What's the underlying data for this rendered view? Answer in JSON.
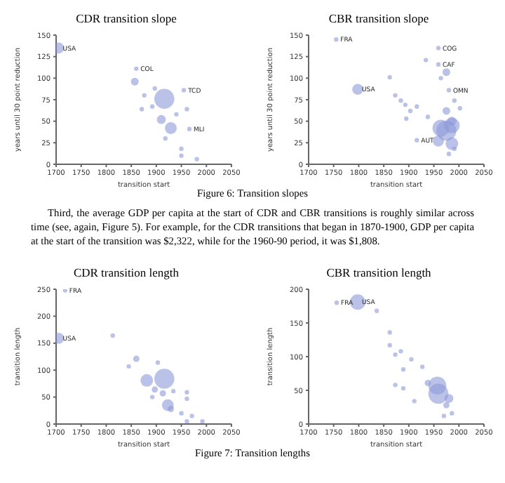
{
  "chart_data": [
    {
      "type": "bubble",
      "title": "CDR transition slope",
      "xlabel": "transition start",
      "ylabel": "years until 30 point reduction",
      "color": "#8e9ad8",
      "xlim": [
        1700,
        2050
      ],
      "xticks": [
        1700,
        1750,
        1800,
        1850,
        1900,
        1950,
        2000,
        2050
      ],
      "ylim": [
        0,
        150
      ],
      "yticks": [
        0,
        25,
        50,
        75,
        100,
        125,
        150
      ],
      "x": [
        1705,
        1860,
        1857,
        1897,
        1916,
        1955,
        1876,
        1892,
        1871,
        1910,
        1929,
        1940,
        1961,
        1966,
        1918,
        1950,
        1950,
        1981
      ],
      "values": [
        135,
        111,
        96,
        88,
        76,
        86,
        80,
        67,
        64,
        52,
        42,
        58,
        64,
        41,
        30,
        18,
        10,
        6
      ],
      "sizes": [
        0.3,
        0.05,
        0.15,
        0.05,
        1,
        0.05,
        0.05,
        0.05,
        0.05,
        0.2,
        0.35,
        0.05,
        0.05,
        0.05,
        0.05,
        0.05,
        0.05,
        0.05
      ],
      "annotations": [
        {
          "text": "USA",
          "x": 1705,
          "y": 135
        },
        {
          "text": "COL",
          "x": 1860,
          "y": 111
        },
        {
          "text": "TCD",
          "x": 1955,
          "y": 86
        },
        {
          "text": "MLI",
          "x": 1966,
          "y": 41
        },
        "Figure 6: Transition slopes",
        "Third, the average GDP per capita at the start of CDR and CBR transitions is roughly similar across time (see, again, Figure 5). For example, for the CDR transitions that began in 1870-1900, GDP per capita at the start of the transition was $2,322, while for the 1960-90 period, it was $1,808."
      ]
    },
    {
      "type": "bubble",
      "title": "CBR transition slope",
      "xlabel": "transition start",
      "ylabel": "years until 30 point reduction",
      "color": "#8e9ad8",
      "xlim": [
        1700,
        2050
      ],
      "xticks": [
        1700,
        1750,
        1800,
        1850,
        1900,
        1950,
        2000,
        2050
      ],
      "ylim": [
        0,
        150
      ],
      "yticks": [
        0,
        25,
        50,
        75,
        100,
        125,
        150
      ],
      "x": [
        1755,
        1798,
        1862,
        1959,
        1934,
        1959,
        1975,
        1964,
        1873,
        1884,
        1893,
        1903,
        1895,
        1916,
        1938,
        1975,
        1980,
        1991,
        2002,
        1986,
        1964,
        1975,
        1986,
        1916,
        1959,
        1986,
        1980,
        1991
      ],
      "values": [
        145,
        87,
        101,
        135,
        121,
        116,
        107,
        100,
        80,
        74,
        69,
        62,
        53,
        67,
        55,
        62,
        86,
        74,
        65,
        50,
        42,
        39,
        45,
        28,
        27,
        24,
        12,
        18
      ],
      "sizes": [
        0.05,
        0.3,
        0.05,
        0.05,
        0.05,
        0.05,
        0.15,
        0.05,
        0.05,
        0.05,
        0.05,
        0.05,
        0.05,
        0.05,
        0.05,
        0.15,
        0.05,
        0.05,
        0.05,
        0.2,
        0.7,
        1,
        0.6,
        0.05,
        0.3,
        0.4,
        0.05,
        0.05
      ],
      "annotations": [
        {
          "text": "FRA",
          "x": 1755,
          "y": 145
        },
        {
          "text": "USA",
          "x": 1798,
          "y": 87
        },
        {
          "text": "COG",
          "x": 1959,
          "y": 135
        },
        {
          "text": "CAF",
          "x": 1959,
          "y": 116
        },
        {
          "text": "OMN",
          "x": 1980,
          "y": 86
        },
        {
          "text": "AUT",
          "x": 1916,
          "y": 28
        }
      ]
    },
    {
      "type": "bubble",
      "title": "CDR transition length",
      "xlabel": "transition start",
      "ylabel": "transition length",
      "color": "#8e9ad8",
      "xlim": [
        1700,
        2050
      ],
      "xticks": [
        1700,
        1750,
        1800,
        1850,
        1900,
        1950,
        2000,
        2050
      ],
      "ylim": [
        0,
        250
      ],
      "yticks": [
        0,
        50,
        100,
        150,
        200,
        250
      ],
      "x": [
        1718,
        1705,
        1813,
        1860,
        1845,
        1903,
        1916,
        1881,
        1897,
        1892,
        1913,
        1934,
        1961,
        1923,
        1929,
        1961,
        1950,
        1971,
        1961,
        1992
      ],
      "values": [
        248,
        159,
        164,
        121,
        107,
        114,
        84,
        81,
        64,
        50,
        57,
        61,
        59,
        35,
        28,
        47,
        20,
        15,
        5,
        5
      ],
      "sizes": [
        0.05,
        0.3,
        0.05,
        0.1,
        0.05,
        0.05,
        1,
        0.4,
        0.1,
        0.05,
        0.1,
        0.05,
        0.05,
        0.35,
        0.1,
        0.05,
        0.05,
        0.05,
        0.05,
        0.05
      ],
      "annotations": [
        {
          "text": "FRA",
          "x": 1718,
          "y": 248
        },
        {
          "text": "USA",
          "x": 1705,
          "y": 159
        },
        "Figure 7: Transition lengths"
      ]
    },
    {
      "type": "bubble",
      "title": "CBR transition length",
      "xlabel": "transition start",
      "ylabel": "transition length",
      "color": "#8e9ad8",
      "xlim": [
        1700,
        2050
      ],
      "xticks": [
        1700,
        1750,
        1800,
        1850,
        1900,
        1950,
        2000,
        2050
      ],
      "ylim": [
        0,
        200
      ],
      "yticks": [
        0,
        50,
        100,
        150,
        200
      ],
      "x": [
        1756,
        1798,
        1836,
        1862,
        1862,
        1884,
        1873,
        1905,
        1927,
        1889,
        1873,
        1889,
        1911,
        1938,
        1957,
        1959,
        1980,
        1975,
        1970,
        1986
      ],
      "values": [
        180,
        181,
        168,
        136,
        117,
        108,
        103,
        96,
        85,
        81,
        58,
        53,
        34,
        61,
        57,
        45,
        38,
        28,
        12,
        16
      ],
      "sizes": [
        0.05,
        0.6,
        0.05,
        0.05,
        0.05,
        0.05,
        0.05,
        0.05,
        0.05,
        0.05,
        0.05,
        0.05,
        0.05,
        0.1,
        0.8,
        1,
        0.2,
        0.1,
        0.05,
        0.05
      ],
      "annotations": [
        {
          "text": "FRA",
          "x": 1756,
          "y": 180
        },
        {
          "text": "USA",
          "x": 1798,
          "y": 181
        }
      ]
    }
  ]
}
